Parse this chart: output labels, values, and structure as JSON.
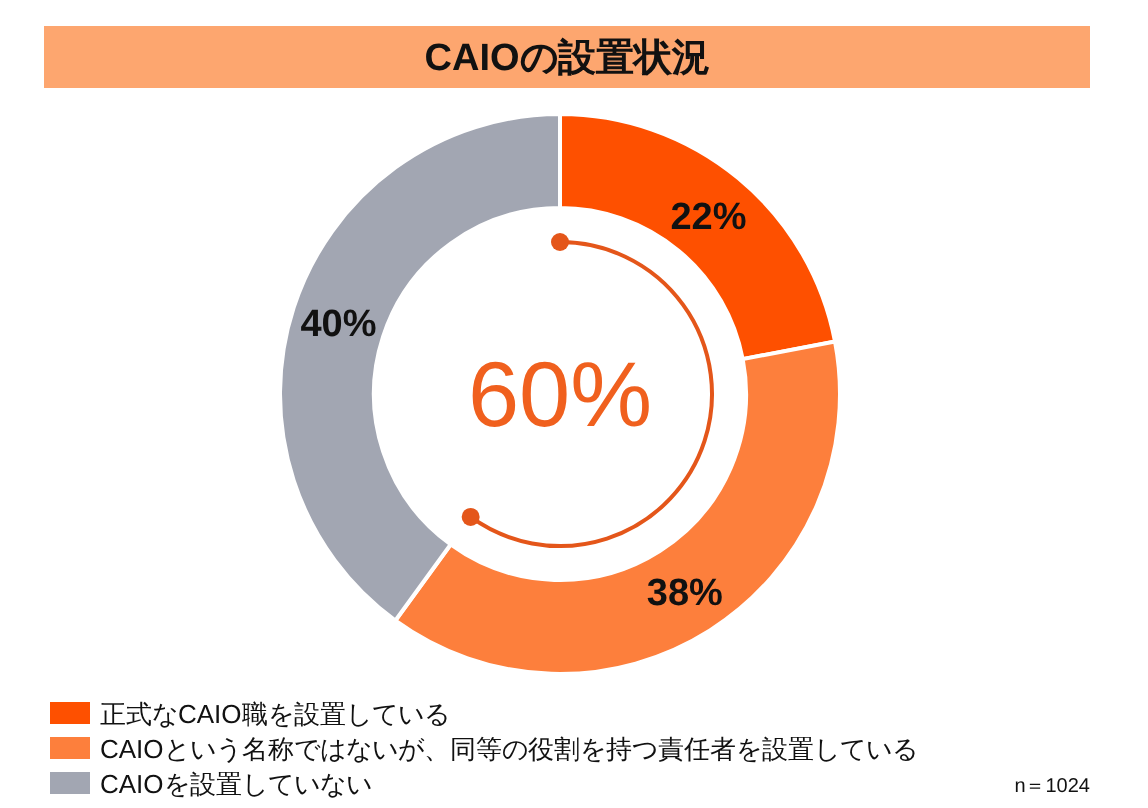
{
  "chart_data": {
    "type": "donut",
    "title": "CAIOの設置状況",
    "categories": [
      "正式なCAIO職を設置している",
      "CAIOという名称ではないが、同等の役割を持つ責任者を設置している",
      "CAIOを設置していない"
    ],
    "values": [
      22,
      38,
      40
    ],
    "colors": [
      "#fe5000",
      "#fd7f3c",
      "#a2a6b2"
    ],
    "value_labels": [
      "22%",
      "38%",
      "40%"
    ],
    "legend": "bottom left",
    "annotations": [
      "60%",
      "n＝1024"
    ]
  }
}
